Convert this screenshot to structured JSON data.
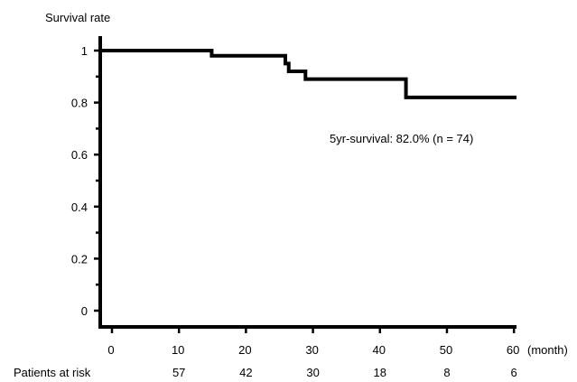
{
  "chart_data": {
    "type": "line",
    "title": "",
    "ylabel": "Survival rate",
    "xunit": "(month)",
    "xlim": [
      0,
      62
    ],
    "ylim": [
      0,
      1
    ],
    "x_ticks": [
      0,
      10,
      20,
      30,
      40,
      50,
      60
    ],
    "y_ticks": [
      0,
      0.2,
      0.4,
      0.6,
      0.8,
      1
    ],
    "y_tick_labels": [
      "0",
      "0.2",
      "0.4",
      "0.6",
      "0.8",
      "1"
    ],
    "grid": false,
    "series": [
      {
        "step": [
          {
            "x": 0,
            "y": 1.0
          },
          {
            "x": 16.5,
            "y": 0.98
          },
          {
            "x": 27.5,
            "y": 0.95
          },
          {
            "x": 28.0,
            "y": 0.92
          },
          {
            "x": 30.5,
            "y": 0.89
          },
          {
            "x": 45.5,
            "y": 0.82
          },
          {
            "x": 62,
            "y": 0.82
          }
        ]
      }
    ],
    "annotation": "5yr-survival: 82.0% (n = 74)",
    "at_risk": {
      "label": "Patients at risk",
      "values": [
        "57",
        "42",
        "30",
        "18",
        "8",
        "6"
      ],
      "x": [
        10,
        20,
        30,
        40,
        50,
        60
      ]
    }
  }
}
